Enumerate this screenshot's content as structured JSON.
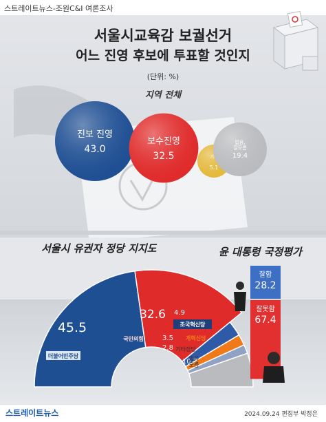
{
  "source": "스트레이트뉴스-조원C&I 여론조사",
  "title_line1": "서울시교육감 보궐선거",
  "title_line2": "어느 진영 후보에 투표할 것인지",
  "unit": "(단위: %)",
  "region": "지역 전체",
  "party_section_title": "서울시 유권자 정당 지지도",
  "approval_section_title": "윤 대통령 국정평가",
  "logo_texts": {
    "dem": "더불어민주당",
    "ppp": "국민의힘",
    "rebuild": "조국혁신당",
    "reform": "개혁신당"
  },
  "brand": "스트레이트뉴스",
  "credit": "2024.09.24 편집부 박정은",
  "colors": {
    "progressive": "#1f4f93",
    "conservative": "#e02b2b",
    "other": "#e4b93c",
    "none": "#b9bbbe",
    "rebuild": "#2e5aa8",
    "reform": "#f07a1a",
    "good": "#3d6fc5",
    "bad": "#e23030"
  },
  "chart_data": [
    {
      "type": "bubble",
      "title": "서울시교육감 보궐선거 어느 진영 후보에 투표할 것인지",
      "subtitle": "지역 전체",
      "unit": "%",
      "items": [
        {
          "label": "진보 진영",
          "value": 43.0,
          "display": "43.0",
          "color": "#1f4f93"
        },
        {
          "label": "보수진영",
          "value": 32.5,
          "display": "32.5",
          "color": "#e02b2b"
        },
        {
          "label": "기타",
          "value": 5.1,
          "display": "5.1",
          "color": "#e4b93c"
        },
        {
          "label": "없음,\n잘모름",
          "value": 19.4,
          "display": "19.4",
          "color": "#b9bbbe"
        }
      ]
    },
    {
      "type": "pie",
      "title": "서울시 유권자 정당 지지도",
      "unit": "%",
      "slices": [
        {
          "label": "더불어민주당",
          "value": 45.5,
          "display": "45.5",
          "color": "#1f4f93"
        },
        {
          "label": "국민의힘",
          "value": 32.6,
          "display": "32.6",
          "color": "#e02b2b"
        },
        {
          "label": "조국혁신당",
          "value": 4.9,
          "display": "4.9",
          "color": "#2e5aa8"
        },
        {
          "label": "개혁신당",
          "value": 3.5,
          "display": "3.5",
          "color": "#f07a1a"
        },
        {
          "label": "기타정당",
          "value": 2.8,
          "display": "2.8",
          "color": "#8fa2c4"
        },
        {
          "label": "없음\n모름",
          "value": 10.7,
          "display": "10.7",
          "color": "#b9bbbe"
        }
      ]
    },
    {
      "type": "bar",
      "title": "윤 대통령 국정평가",
      "unit": "%",
      "categories": [
        "잘함",
        "잘못함"
      ],
      "values": [
        28.2,
        67.4
      ],
      "colors": [
        "#3d6fc5",
        "#e23030"
      ]
    }
  ]
}
